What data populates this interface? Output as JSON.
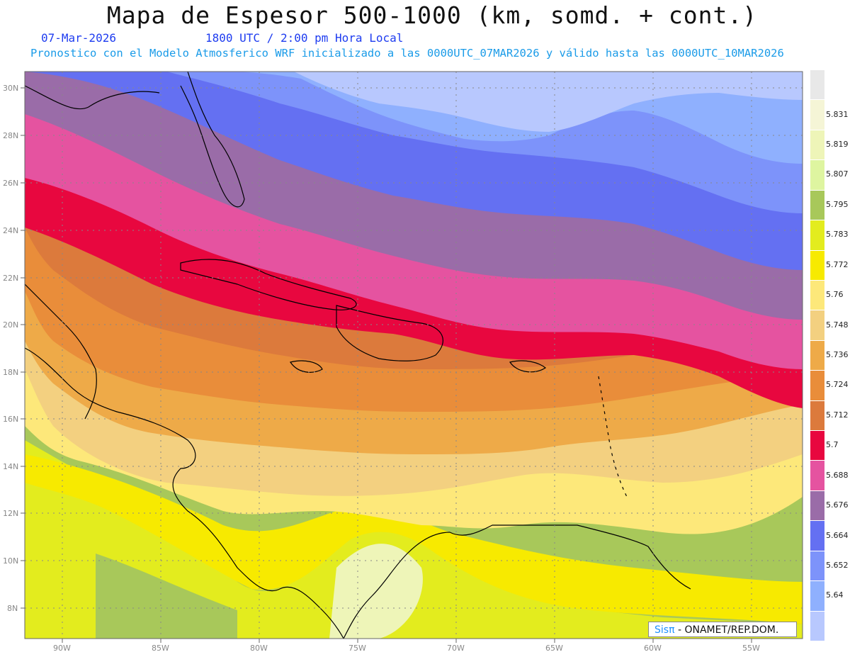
{
  "header": {
    "title": "Mapa de Espesor 500-1000 (km, somd. + cont.)",
    "date": "07-Mar-2026",
    "time": "1800 UTC / 2:00 pm Hora Local",
    "description": "Pronostico con el Modelo Atmosferico WRF inicializado a las 0000UTC_07MAR2026 y válido hasta las  0000UTC_10MAR2026"
  },
  "map": {
    "lat_labels": [
      "30N",
      "28N",
      "26N",
      "24N",
      "22N",
      "20N",
      "18N",
      "16N",
      "14N",
      "12N",
      "10N",
      "8N"
    ],
    "lon_labels": [
      "90W",
      "85W",
      "80W",
      "75W",
      "70W",
      "65W",
      "60W",
      "55W"
    ],
    "credit": {
      "sis": "Sisπ",
      "rest": " - ONAMET/REP.DOM."
    }
  },
  "colorbar": {
    "levels": [
      {
        "label": "",
        "color": "#e8e8e8"
      },
      {
        "label": "5.831",
        "color": "#f5f5d6"
      },
      {
        "label": "5.819",
        "color": "#eef5b8"
      },
      {
        "label": "5.807",
        "color": "#def5a0"
      },
      {
        "label": "5.795",
        "color": "#a8c85a"
      },
      {
        "label": "5.783",
        "color": "#e3ec1e"
      },
      {
        "label": "5.772",
        "color": "#f7ea00"
      },
      {
        "label": "5.76",
        "color": "#fde87a"
      },
      {
        "label": "5.748",
        "color": "#f3d080"
      },
      {
        "label": "5.736",
        "color": "#eeaa48"
      },
      {
        "label": "5.724",
        "color": "#e98d3a"
      },
      {
        "label": "5.712",
        "color": "#dc7a3c"
      },
      {
        "label": "5.7",
        "color": "#e8073f"
      },
      {
        "label": "5.688",
        "color": "#e553a0"
      },
      {
        "label": "5.676",
        "color": "#9a6ca8"
      },
      {
        "label": "5.664",
        "color": "#6470f2"
      },
      {
        "label": "5.652",
        "color": "#7d93fa"
      },
      {
        "label": "5.64",
        "color": "#8fb0fe"
      },
      {
        "label": "",
        "color": "#b8c8fe"
      }
    ]
  }
}
